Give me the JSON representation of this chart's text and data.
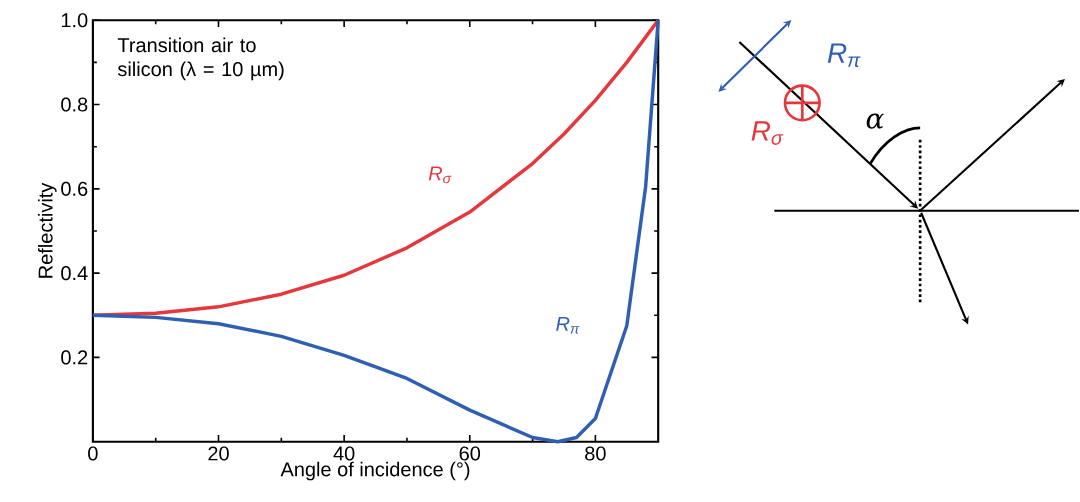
{
  "chart_data": {
    "type": "line",
    "xlabel": "Angle of incidence (°)",
    "ylabel": "Reflectivity",
    "xlim": [
      0,
      90
    ],
    "ylim": [
      0,
      1
    ],
    "xticks": [
      0,
      20,
      40,
      60,
      80
    ],
    "yticks": [
      0.2,
      0.4,
      0.6,
      0.8,
      {
        "value": 1,
        "label": "1.0"
      }
    ],
    "annotations": [
      "Transition air to silicon (λ = 10 µm)",
      "R$_{π}$",
      "R$_{σ}$",
      "α"
    ],
    "series": [
      {
        "name": "R$_{σ}$",
        "color": "#e5383d",
        "x": [
          0,
          10,
          20,
          30,
          40,
          50,
          60,
          70,
          75,
          80,
          85,
          88,
          90
        ],
        "values": [
          0.3,
          0.305,
          0.32,
          0.35,
          0.395,
          0.46,
          0.545,
          0.66,
          0.73,
          0.81,
          0.9,
          0.96,
          1.0
        ]
      },
      {
        "name": "R$_{π}$",
        "color": "#2f5fb3",
        "x": [
          0,
          10,
          20,
          30,
          40,
          50,
          60,
          70,
          74,
          77,
          80,
          85,
          88,
          90
        ],
        "values": [
          0.3,
          0.295,
          0.28,
          0.25,
          0.205,
          0.15,
          0.075,
          0.01,
          0.0,
          0.01,
          0.055,
          0.275,
          0.605,
          1.0
        ]
      }
    ]
  }
}
